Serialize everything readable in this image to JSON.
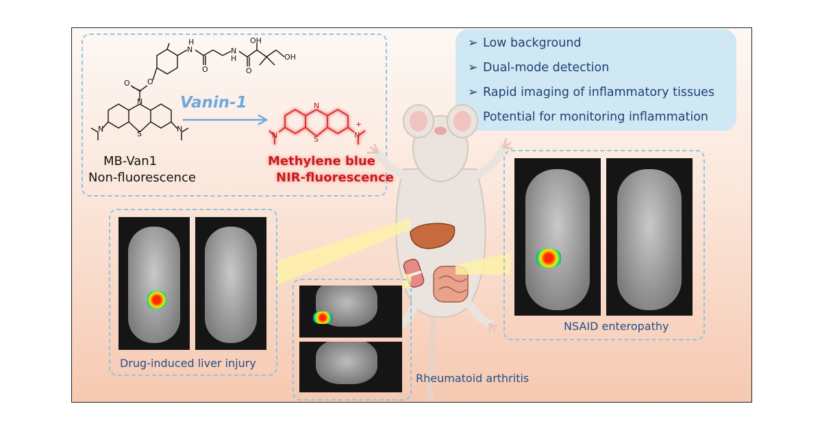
{
  "chemistry": {
    "precursor_name": "MB-Van1",
    "precursor_state": "Non-fluorescence",
    "enzyme": "Vanin-1",
    "product_name": "Methylene blue",
    "product_state": "NIR-fluorescence",
    "atoms": {
      "h": "H",
      "n": "N",
      "o": "O",
      "oh": "OH",
      "s": "S",
      "plus": "+"
    }
  },
  "features": [
    "Low background",
    "Dual-mode detection",
    "Rapid imaging of inflammatory tissues",
    "Potential for monitoring inflammation"
  ],
  "bullet_glyph": "➢",
  "models": {
    "liver": "Drug-induced liver injury",
    "arthritis": "Rheumatoid arthritis",
    "enteropathy": "NSAID enteropathy"
  },
  "colors": {
    "label_blue": "#1f4f88",
    "dash_box": "#8fc3df",
    "feature_box": "#cfe8f3",
    "product_red": "#c41f1f",
    "vanin_arrow": "#6fa8dc"
  }
}
